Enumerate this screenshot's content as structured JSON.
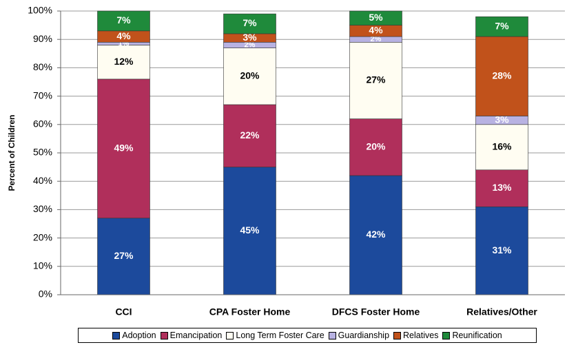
{
  "chart_data": {
    "type": "stacked_bar",
    "y_label": "Percent of Children",
    "categories": [
      "CCI",
      "CPA Foster Home",
      "DFCS Foster Home",
      "Relatives/Other"
    ],
    "series": [
      {
        "name": "Adoption",
        "color": "#1c4a9c",
        "values": [
          27,
          45,
          42,
          31
        ],
        "value_labels": [
          "27%",
          "45%",
          "42%",
          "31%"
        ]
      },
      {
        "name": "Emancipation",
        "color": "#b02f5b",
        "values": [
          49,
          22,
          20,
          13
        ],
        "value_labels": [
          "49%",
          "22%",
          "20%",
          "13%"
        ]
      },
      {
        "name": "Long Term Foster Care",
        "color": "#fffdf2",
        "values": [
          12,
          20,
          27,
          16
        ],
        "value_labels": [
          "12%",
          "20%",
          "27%",
          "16%"
        ]
      },
      {
        "name": "Guardianship",
        "color": "#b8b2e2",
        "values": [
          1,
          2,
          2,
          3
        ],
        "value_labels": [
          "1%",
          "2%",
          "2%",
          "3%"
        ]
      },
      {
        "name": "Relatives",
        "color": "#c1521b",
        "values": [
          4,
          3,
          4,
          28
        ],
        "value_labels": [
          "4%",
          "3%",
          "4%",
          "28%"
        ]
      },
      {
        "name": "Reunification",
        "color": "#1f8a3b",
        "values": [
          7,
          7,
          5,
          7
        ],
        "value_labels": [
          "7%",
          "7%",
          "5%",
          "7%"
        ]
      }
    ],
    "ylim": [
      0,
      100
    ],
    "yticks": [
      {
        "value": 0,
        "label": "0%"
      },
      {
        "value": 10,
        "label": "10%"
      },
      {
        "value": 20,
        "label": "20%"
      },
      {
        "value": 30,
        "label": "30%"
      },
      {
        "value": 40,
        "label": "40%"
      },
      {
        "value": 50,
        "label": "50%"
      },
      {
        "value": 60,
        "label": "60%"
      },
      {
        "value": 70,
        "label": "70%"
      },
      {
        "value": 80,
        "label": "80%"
      },
      {
        "value": 90,
        "label": "90%"
      },
      {
        "value": 100,
        "label": "100%"
      }
    ],
    "grid": true
  }
}
